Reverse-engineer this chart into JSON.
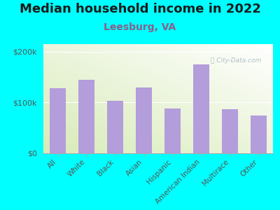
{
  "title": "Median household income in 2022",
  "subtitle": "Leesburg, VA",
  "categories": [
    "All",
    "White",
    "Black",
    "Asian",
    "Hispanic",
    "American Indian",
    "Multirace",
    "Other"
  ],
  "values": [
    128000,
    145000,
    103000,
    130000,
    88000,
    175000,
    87000,
    75000
  ],
  "bar_color": "#b39ddb",
  "background_color": "#00ffff",
  "plot_bg_left": "#e8f0d8",
  "plot_bg_right": "#f8fff8",
  "title_fontsize": 13,
  "subtitle_fontsize": 10,
  "subtitle_color": "#8B5E8B",
  "tick_color": "#555555",
  "ytick_labels": [
    "$0",
    "$100k",
    "$200k"
  ],
  "ytick_values": [
    0,
    100000,
    200000
  ],
  "ylim": [
    0,
    215000
  ],
  "watermark": "City-Data.com"
}
